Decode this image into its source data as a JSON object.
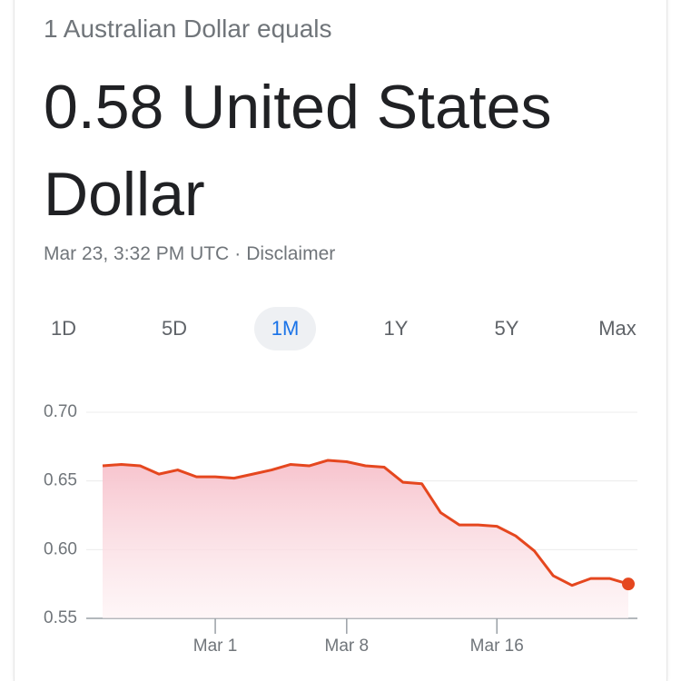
{
  "header": {
    "subtitle": "1 Australian Dollar equals",
    "result": "0.58 United States Dollar",
    "updated": "Mar 23, 3:32 PM UTC",
    "separator": "·",
    "disclaimer": "Disclaimer"
  },
  "ranges": {
    "options": [
      "1D",
      "5D",
      "1M",
      "1Y",
      "5Y",
      "Max"
    ],
    "selected": 2
  },
  "chart_data": {
    "type": "line",
    "x": [
      "Feb 24",
      "Feb 25",
      "Feb 26",
      "Feb 27",
      "Feb 28",
      "Feb 29",
      "Mar 1",
      "Mar 2",
      "Mar 3",
      "Mar 4",
      "Mar 5",
      "Mar 6",
      "Mar 7",
      "Mar 8",
      "Mar 9",
      "Mar 10",
      "Mar 11",
      "Mar 12",
      "Mar 13",
      "Mar 14",
      "Mar 15",
      "Mar 16",
      "Mar 17",
      "Mar 18",
      "Mar 19",
      "Mar 20",
      "Mar 21",
      "Mar 22",
      "Mar 23"
    ],
    "values": [
      0.661,
      0.662,
      0.661,
      0.655,
      0.658,
      0.653,
      0.653,
      0.652,
      0.655,
      0.658,
      0.662,
      0.661,
      0.665,
      0.664,
      0.661,
      0.66,
      0.649,
      0.648,
      0.627,
      0.618,
      0.618,
      0.617,
      0.61,
      0.599,
      0.581,
      0.574,
      0.579,
      0.579,
      0.575
    ],
    "color": "#e5471f",
    "ylim": [
      0.55,
      0.7
    ],
    "yticks": [
      0.55,
      {
        "value": 0.6,
        "label": "0.60"
      },
      0.65,
      {
        "value": 0.7,
        "label": "0.70"
      }
    ],
    "xticks": [
      "Mar 1",
      "Mar 8",
      "Mar 16"
    ],
    "grid": true
  }
}
